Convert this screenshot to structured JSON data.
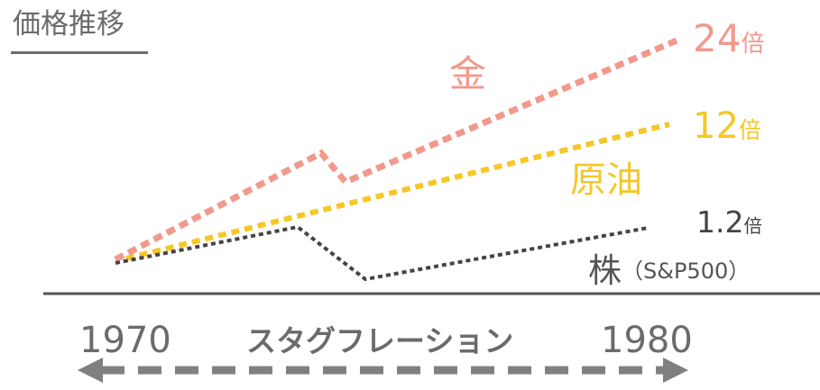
{
  "title": "価格推移",
  "assets": {
    "gold": {
      "name": "金",
      "multiple_number": "24",
      "multiple_unit": "倍",
      "color": "#f2998d"
    },
    "oil": {
      "name": "原油",
      "multiple_number": "12",
      "multiple_unit": "倍",
      "color": "#f5c728"
    },
    "stock": {
      "name": "株",
      "name_suffix": "（S&P500）",
      "multiple_number": "1.2",
      "multiple_unit": "倍",
      "color": "#444444"
    }
  },
  "timeline": {
    "start_year": "1970",
    "end_year": "1980",
    "period_label": "スタグフレーション"
  },
  "colors": {
    "axis": "#555555",
    "arrow": "#808080",
    "text_gray": "#6b6b6b"
  }
}
